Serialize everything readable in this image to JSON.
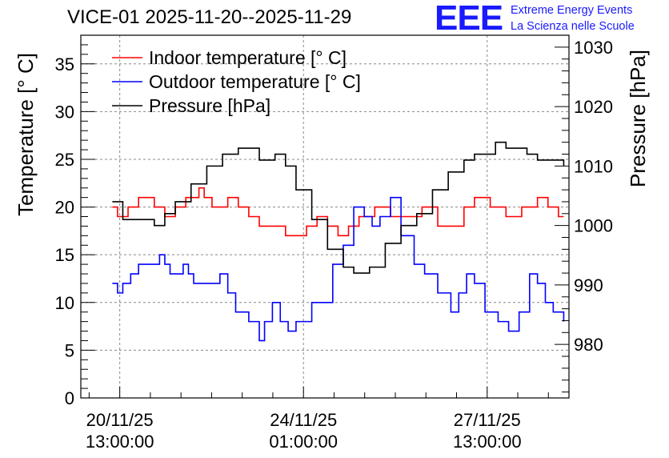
{
  "header": {
    "title": "VICE-01 2025-11-20--2025-11-29",
    "logo": "EEE",
    "org_line1": "Extreme Energy Events",
    "org_line2": "La Scienza nelle Scuole"
  },
  "colors": {
    "indoor": "#ff0000",
    "outdoor": "#0000ff",
    "pressure": "#000000",
    "grid": "#888888"
  },
  "chart_data": {
    "type": "line",
    "title": "VICE-01 2025-11-20--2025-11-29",
    "ylabel": "Temperature [° C]",
    "y2label": "Pressure [hPa]",
    "ylim": [
      0,
      38
    ],
    "y2lim": [
      971,
      1032
    ],
    "x_unit": "days since 2025-11-20 00:00",
    "xlim": [
      -0.2,
      9.1
    ],
    "x_ticks": [
      {
        "x": 0.5417,
        "line1": "20/11/25",
        "line2": "13:00:00"
      },
      {
        "x": 4.0417,
        "line1": "24/11/25",
        "line2": "01:00:00"
      },
      {
        "x": 7.5417,
        "line1": "27/11/25",
        "line2": "13:00:00"
      }
    ],
    "y_ticks": [
      0,
      5,
      10,
      15,
      20,
      25,
      30,
      35
    ],
    "y2_ticks": [
      980,
      990,
      1000,
      1010,
      1020,
      1030
    ],
    "grid": true,
    "legend_position": "top-left",
    "series": [
      {
        "name": "Indoor temperature [° C]",
        "axis": "left",
        "x": [
          0.4,
          0.5,
          0.7,
          0.9,
          1.0,
          1.2,
          1.4,
          1.6,
          1.8,
          2.0,
          2.05,
          2.15,
          2.3,
          2.6,
          2.8,
          3.0,
          3.2,
          3.5,
          3.7,
          3.9,
          4.1,
          4.3,
          4.5,
          4.7,
          4.9,
          5.1,
          5.4,
          5.7,
          6.0,
          6.3,
          6.6,
          6.8,
          7.1,
          7.3,
          7.6,
          7.9,
          8.2,
          8.5,
          8.7,
          8.9,
          9.0
        ],
        "values": [
          20,
          19,
          20,
          21,
          21,
          20,
          19,
          20,
          21,
          21,
          22,
          21,
          20,
          21,
          20,
          19,
          18,
          18,
          17,
          17,
          18,
          19,
          18,
          17,
          18,
          19,
          20,
          19,
          19,
          20,
          18,
          18,
          20,
          21,
          20,
          19,
          20,
          21,
          20,
          19,
          19
        ]
      },
      {
        "name": "Outdoor temperature [° C]",
        "axis": "left",
        "x": [
          0.4,
          0.5,
          0.6,
          0.75,
          0.9,
          1.1,
          1.3,
          1.4,
          1.5,
          1.6,
          1.75,
          1.85,
          1.95,
          2.3,
          2.45,
          2.6,
          2.75,
          3.0,
          3.2,
          3.3,
          3.45,
          3.6,
          3.75,
          3.9,
          4.2,
          4.6,
          4.8,
          5.0,
          5.2,
          5.35,
          5.5,
          5.7,
          5.9,
          6.15,
          6.35,
          6.6,
          6.85,
          7.0,
          7.15,
          7.3,
          7.5,
          7.75,
          7.95,
          8.15,
          8.35,
          8.5,
          8.65,
          8.8,
          9.0
        ],
        "values": [
          12,
          11,
          12,
          13,
          14,
          14,
          15,
          14,
          13,
          13,
          14,
          13,
          12,
          12,
          13,
          11,
          9,
          8,
          6,
          8,
          10,
          8,
          7,
          8,
          10,
          14,
          16,
          20,
          19,
          18,
          19,
          21,
          17,
          14,
          13,
          11,
          9,
          11,
          13,
          12,
          9,
          8,
          7,
          9,
          13,
          12,
          10,
          9,
          8
        ]
      },
      {
        "name": "Pressure [hPa]",
        "axis": "right",
        "x": [
          0.4,
          0.6,
          0.9,
          1.2,
          1.4,
          1.6,
          1.9,
          2.2,
          2.5,
          2.8,
          3.0,
          3.2,
          3.5,
          3.7,
          3.9,
          4.2,
          4.5,
          4.8,
          5.0,
          5.3,
          5.6,
          5.9,
          6.2,
          6.5,
          6.8,
          7.1,
          7.3,
          7.5,
          7.7,
          7.9,
          8.1,
          8.3,
          8.5,
          8.8,
          9.0
        ],
        "values": [
          1004,
          1001,
          1001,
          1000,
          1002,
          1004,
          1007,
          1010,
          1012,
          1013,
          1013,
          1011,
          1012,
          1010,
          1006,
          1001,
          996,
          993,
          992,
          993,
          997,
          1000,
          1002,
          1006,
          1009,
          1011,
          1012,
          1012,
          1014,
          1013,
          1013,
          1012,
          1011,
          1011,
          1010
        ]
      }
    ]
  }
}
